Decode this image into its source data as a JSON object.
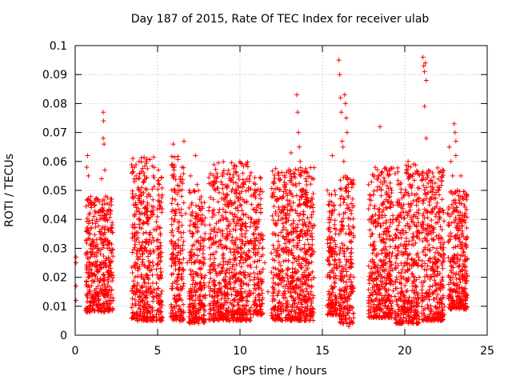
{
  "chart_data": {
    "type": "scatter",
    "title": "Day 187 of 2015, Rate Of TEC Index for receiver ulab",
    "xlabel": "GPS time / hours",
    "ylabel": "ROTI / TECUs",
    "xlim": [
      0,
      25
    ],
    "ylim": [
      0,
      0.1
    ],
    "xticks": [
      "0",
      "5",
      "10",
      "15",
      "20",
      "25"
    ],
    "yticks": [
      "0",
      "0.01",
      "0.02",
      "0.03",
      "0.04",
      "0.05",
      "0.06",
      "0.07",
      "0.08",
      "0.09",
      "0.1"
    ],
    "grid": true,
    "marker": "+",
    "series_color": "#ff0000",
    "points": [
      [
        0.05,
        0.012
      ],
      [
        0.05,
        0.017
      ],
      [
        0.05,
        0.025
      ],
      [
        0.05,
        0.027
      ],
      [
        0.7,
        0.058
      ],
      [
        0.75,
        0.062
      ],
      [
        0.8,
        0.055
      ],
      [
        0.8,
        0.045
      ],
      [
        0.9,
        0.035
      ],
      [
        0.85,
        0.025
      ],
      [
        0.9,
        0.015
      ],
      [
        0.95,
        0.01
      ],
      [
        1.2,
        0.045
      ],
      [
        1.3,
        0.04
      ],
      [
        1.35,
        0.03
      ],
      [
        1.4,
        0.022
      ],
      [
        1.5,
        0.015
      ],
      [
        1.55,
        0.035
      ],
      [
        1.6,
        0.054
      ],
      [
        1.7,
        0.077
      ],
      [
        1.72,
        0.074
      ],
      [
        1.7,
        0.068
      ],
      [
        1.75,
        0.066
      ],
      [
        1.8,
        0.057
      ],
      [
        1.85,
        0.048
      ],
      [
        1.9,
        0.04
      ],
      [
        1.95,
        0.03
      ],
      [
        2.0,
        0.02
      ],
      [
        2.05,
        0.012
      ],
      [
        2.1,
        0.009
      ],
      [
        2.2,
        0.045
      ],
      [
        3.5,
        0.061
      ],
      [
        3.6,
        0.058
      ],
      [
        3.7,
        0.055
      ],
      [
        3.55,
        0.045
      ],
      [
        3.6,
        0.035
      ],
      [
        3.65,
        0.025
      ],
      [
        3.7,
        0.015
      ],
      [
        3.75,
        0.008
      ],
      [
        3.85,
        0.05
      ],
      [
        3.9,
        0.04
      ],
      [
        3.95,
        0.03
      ],
      [
        4.0,
        0.02
      ],
      [
        4.1,
        0.012
      ],
      [
        4.2,
        0.055
      ],
      [
        4.3,
        0.06
      ],
      [
        4.4,
        0.045
      ],
      [
        4.5,
        0.035
      ],
      [
        4.55,
        0.025
      ],
      [
        4.6,
        0.015
      ],
      [
        4.7,
        0.006
      ],
      [
        4.75,
        0.055
      ],
      [
        5.05,
        0.057
      ],
      [
        5.1,
        0.045
      ],
      [
        5.15,
        0.03
      ],
      [
        5.2,
        0.012
      ],
      [
        5.25,
        0.006
      ],
      [
        5.9,
        0.059
      ],
      [
        5.95,
        0.066
      ],
      [
        6.0,
        0.05
      ],
      [
        6.05,
        0.04
      ],
      [
        6.1,
        0.03
      ],
      [
        6.2,
        0.02
      ],
      [
        6.3,
        0.01
      ],
      [
        6.35,
        0.005
      ],
      [
        6.6,
        0.067
      ],
      [
        6.7,
        0.042
      ],
      [
        6.8,
        0.025
      ],
      [
        7.0,
        0.055
      ],
      [
        7.05,
        0.045
      ],
      [
        7.1,
        0.035
      ],
      [
        7.2,
        0.025
      ],
      [
        7.3,
        0.015
      ],
      [
        7.4,
        0.006
      ],
      [
        7.3,
        0.062
      ],
      [
        7.4,
        0.052
      ],
      [
        7.5,
        0.04
      ],
      [
        7.6,
        0.03
      ],
      [
        7.7,
        0.02
      ],
      [
        7.8,
        0.01
      ],
      [
        8.2,
        0.035
      ],
      [
        8.4,
        0.025
      ],
      [
        8.6,
        0.015
      ],
      [
        8.8,
        0.01
      ],
      [
        9.0,
        0.04
      ],
      [
        9.2,
        0.03
      ],
      [
        9.4,
        0.02
      ],
      [
        9.6,
        0.01
      ],
      [
        9.5,
        0.045
      ],
      [
        9.8,
        0.05
      ],
      [
        9.9,
        0.055
      ],
      [
        10.0,
        0.045
      ],
      [
        10.1,
        0.035
      ],
      [
        10.2,
        0.025
      ],
      [
        10.3,
        0.015
      ],
      [
        10.4,
        0.008
      ],
      [
        10.5,
        0.05
      ],
      [
        10.6,
        0.055
      ],
      [
        10.7,
        0.04
      ],
      [
        10.8,
        0.03
      ],
      [
        10.9,
        0.02
      ],
      [
        11.0,
        0.01
      ],
      [
        11.1,
        0.045
      ],
      [
        11.3,
        0.035
      ],
      [
        11.5,
        0.025
      ],
      [
        11.7,
        0.015
      ],
      [
        12.0,
        0.048
      ],
      [
        12.2,
        0.038
      ],
      [
        12.3,
        0.028
      ],
      [
        12.5,
        0.018
      ],
      [
        12.6,
        0.01
      ],
      [
        12.8,
        0.006
      ],
      [
        12.9,
        0.045
      ],
      [
        13.0,
        0.035
      ],
      [
        13.2,
        0.025
      ],
      [
        13.3,
        0.015
      ],
      [
        13.1,
        0.063
      ],
      [
        13.45,
        0.083
      ],
      [
        13.5,
        0.077
      ],
      [
        13.55,
        0.07
      ],
      [
        13.6,
        0.065
      ],
      [
        13.65,
        0.06
      ],
      [
        13.7,
        0.055
      ],
      [
        13.8,
        0.05
      ],
      [
        13.8,
        0.04
      ],
      [
        13.9,
        0.03
      ],
      [
        14.0,
        0.02
      ],
      [
        14.1,
        0.01
      ],
      [
        14.0,
        0.045
      ],
      [
        14.1,
        0.035
      ],
      [
        14.2,
        0.025
      ],
      [
        14.3,
        0.015
      ],
      [
        14.4,
        0.028
      ],
      [
        15.3,
        0.05
      ],
      [
        15.4,
        0.04
      ],
      [
        15.5,
        0.03
      ],
      [
        15.6,
        0.062
      ],
      [
        15.7,
        0.045
      ],
      [
        15.8,
        0.035
      ],
      [
        15.5,
        0.02
      ],
      [
        15.6,
        0.01
      ],
      [
        15.65,
        0.007
      ],
      [
        16.0,
        0.095
      ],
      [
        16.05,
        0.09
      ],
      [
        16.1,
        0.082
      ],
      [
        16.15,
        0.077
      ],
      [
        16.2,
        0.067
      ],
      [
        16.25,
        0.065
      ],
      [
        16.3,
        0.06
      ],
      [
        16.35,
        0.083
      ],
      [
        16.4,
        0.08
      ],
      [
        16.45,
        0.075
      ],
      [
        16.5,
        0.07
      ],
      [
        16.4,
        0.055
      ],
      [
        16.5,
        0.045
      ],
      [
        16.6,
        0.035
      ],
      [
        16.7,
        0.025
      ],
      [
        16.8,
        0.015
      ],
      [
        16.9,
        0.006
      ],
      [
        16.6,
        0.003
      ],
      [
        17.8,
        0.052
      ],
      [
        17.9,
        0.045
      ],
      [
        18.0,
        0.035
      ],
      [
        18.1,
        0.025
      ],
      [
        18.2,
        0.015
      ],
      [
        18.3,
        0.01
      ],
      [
        18.4,
        0.055
      ],
      [
        18.5,
        0.072
      ],
      [
        18.6,
        0.045
      ],
      [
        18.7,
        0.035
      ],
      [
        18.8,
        0.025
      ],
      [
        18.9,
        0.015
      ],
      [
        19.0,
        0.01
      ],
      [
        19.2,
        0.05
      ],
      [
        19.3,
        0.04
      ],
      [
        19.4,
        0.03
      ],
      [
        19.5,
        0.02
      ],
      [
        19.6,
        0.01
      ],
      [
        19.7,
        0.005
      ],
      [
        19.8,
        0.045
      ],
      [
        19.9,
        0.035
      ],
      [
        20.0,
        0.025
      ],
      [
        20.1,
        0.015
      ],
      [
        20.2,
        0.007
      ],
      [
        20.2,
        0.06
      ],
      [
        20.3,
        0.052
      ],
      [
        20.4,
        0.045
      ],
      [
        20.5,
        0.035
      ],
      [
        20.6,
        0.025
      ],
      [
        20.7,
        0.015
      ],
      [
        20.8,
        0.008
      ],
      [
        21.1,
        0.096
      ],
      [
        21.15,
        0.093
      ],
      [
        21.2,
        0.091
      ],
      [
        21.25,
        0.094
      ],
      [
        21.3,
        0.088
      ],
      [
        21.2,
        0.079
      ],
      [
        21.3,
        0.068
      ],
      [
        21.4,
        0.055
      ],
      [
        21.5,
        0.045
      ],
      [
        21.6,
        0.035
      ],
      [
        21.7,
        0.025
      ],
      [
        21.8,
        0.015
      ],
      [
        21.9,
        0.008
      ],
      [
        22.0,
        0.05
      ],
      [
        22.1,
        0.04
      ],
      [
        22.2,
        0.03
      ],
      [
        22.3,
        0.02
      ],
      [
        22.4,
        0.01
      ],
      [
        22.7,
        0.065
      ],
      [
        22.8,
        0.06
      ],
      [
        22.9,
        0.055
      ],
      [
        23.0,
        0.073
      ],
      [
        23.05,
        0.07
      ],
      [
        23.1,
        0.067
      ],
      [
        23.1,
        0.062
      ],
      [
        23.2,
        0.05
      ],
      [
        23.3,
        0.04
      ],
      [
        23.4,
        0.03
      ],
      [
        23.5,
        0.02
      ],
      [
        23.6,
        0.015
      ],
      [
        23.7,
        0.012
      ],
      [
        23.4,
        0.055
      ],
      [
        23.5,
        0.048
      ],
      [
        23.6,
        0.045
      ]
    ],
    "clusters": [
      {
        "x": [
          0.65,
          2.3
        ],
        "y": [
          0.008,
          0.048
        ]
      },
      {
        "x": [
          3.4,
          4.8
        ],
        "y": [
          0.005,
          0.062
        ]
      },
      {
        "x": [
          4.9,
          5.3
        ],
        "y": [
          0.005,
          0.055
        ]
      },
      {
        "x": [
          5.8,
          6.6
        ],
        "y": [
          0.005,
          0.062
        ]
      },
      {
        "x": [
          6.9,
          7.9
        ],
        "y": [
          0.004,
          0.05
        ]
      },
      {
        "x": [
          8.1,
          10.7
        ],
        "y": [
          0.005,
          0.06
        ]
      },
      {
        "x": [
          10.8,
          11.4
        ],
        "y": [
          0.007,
          0.055
        ]
      },
      {
        "x": [
          11.9,
          14.5
        ],
        "y": [
          0.005,
          0.058
        ]
      },
      {
        "x": [
          15.3,
          15.9
        ],
        "y": [
          0.007,
          0.05
        ]
      },
      {
        "x": [
          16.0,
          16.9
        ],
        "y": [
          0.004,
          0.055
        ]
      },
      {
        "x": [
          17.8,
          19.3
        ],
        "y": [
          0.006,
          0.058
        ]
      },
      {
        "x": [
          19.4,
          20.9
        ],
        "y": [
          0.004,
          0.06
        ]
      },
      {
        "x": [
          21.0,
          22.4
        ],
        "y": [
          0.005,
          0.058
        ]
      },
      {
        "x": [
          22.6,
          23.8
        ],
        "y": [
          0.009,
          0.05
        ]
      }
    ]
  }
}
